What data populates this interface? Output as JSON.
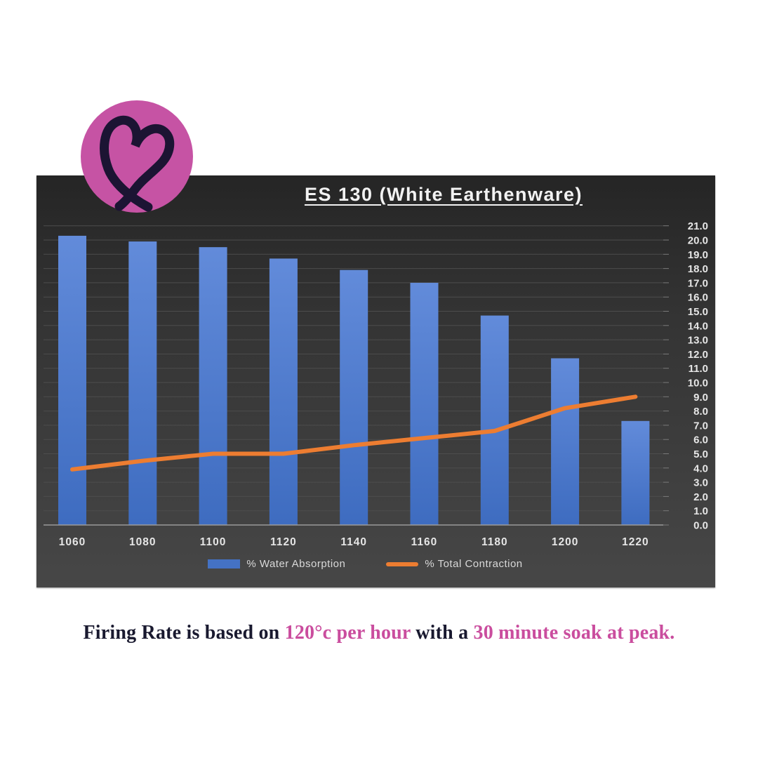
{
  "logo": {
    "name": "heart-logo",
    "circle_color": "#c653a4",
    "heart_color": "#1c1433"
  },
  "chart_data": {
    "type": "bar",
    "title": "ES 130 (White Earthenware)",
    "categories": [
      "1060",
      "1080",
      "1100",
      "1120",
      "1140",
      "1160",
      "1180",
      "1200",
      "1220"
    ],
    "series": [
      {
        "name": "% Water Absorption",
        "type": "bar",
        "color": "#4472c4",
        "values": [
          20.3,
          19.9,
          19.5,
          18.7,
          17.9,
          17.0,
          14.7,
          11.7,
          7.3
        ]
      },
      {
        "name": "% Total Contraction",
        "type": "line",
        "color": "#ed7d31",
        "values": [
          3.9,
          4.5,
          5.0,
          5.0,
          5.6,
          6.1,
          6.6,
          8.2,
          9.0
        ]
      }
    ],
    "ylim": [
      0,
      21
    ],
    "ytick_step": 1.0,
    "ytick_decimals": 1,
    "yaxis_side": "right",
    "grid": true,
    "legend_position": "bottom"
  },
  "colors": {
    "bar_gradient_top": "#628bda",
    "bar_gradient_bottom": "#3e6cc0",
    "line_orange": "#ed7d31",
    "gridline": "#4d4d4d",
    "axis_line": "#9a9a9a",
    "tick": "#7a7a7a",
    "axis_text": "#e6e6e6",
    "panel_dark": "#2a2a2a",
    "caption_dark": "#19192f",
    "caption_pink": "#ca4d9e"
  },
  "caption": {
    "segments": [
      {
        "text": "Firing Rate is based on ",
        "color": "#19192f"
      },
      {
        "text": "120°c per hour",
        "color": "#ca4d9e"
      },
      {
        "text": " with a ",
        "color": "#19192f"
      },
      {
        "text": "30 minute soak at peak.",
        "color": "#ca4d9e"
      }
    ]
  }
}
